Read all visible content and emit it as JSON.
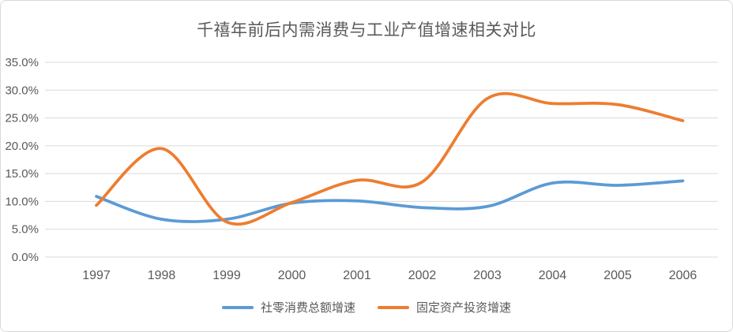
{
  "chart_data": {
    "type": "line",
    "title": "千禧年前后内需消费与工业产值增速相关对比",
    "x_labels": [
      "1997",
      "1998",
      "1999",
      "2000",
      "2001",
      "2002",
      "2003",
      "2004",
      "2005",
      "2006"
    ],
    "y_tick_labels": [
      "0.0%",
      "5.0%",
      "10.0%",
      "15.0%",
      "20.0%",
      "25.0%",
      "30.0%",
      "35.0%"
    ],
    "ylim": [
      0,
      35
    ],
    "ytick_step": 5,
    "grid": true,
    "smooth": true,
    "legend_position": "bottom",
    "series": [
      {
        "name": "社零消费总额增速",
        "color": "#5B9BD5",
        "values": [
          10.9,
          6.8,
          6.8,
          9.7,
          10.1,
          8.9,
          9.1,
          13.3,
          12.9,
          13.7
        ]
      },
      {
        "name": "固定资产投资增速",
        "color": "#ED7D31",
        "values": [
          9.3,
          19.5,
          6.3,
          9.8,
          13.8,
          13.5,
          28.5,
          27.6,
          27.4,
          24.5
        ]
      }
    ],
    "colors": {
      "grid": "#D9D9D9",
      "text": "#595959",
      "border": "#D9D9D9",
      "background": "#FFFFFF"
    }
  }
}
